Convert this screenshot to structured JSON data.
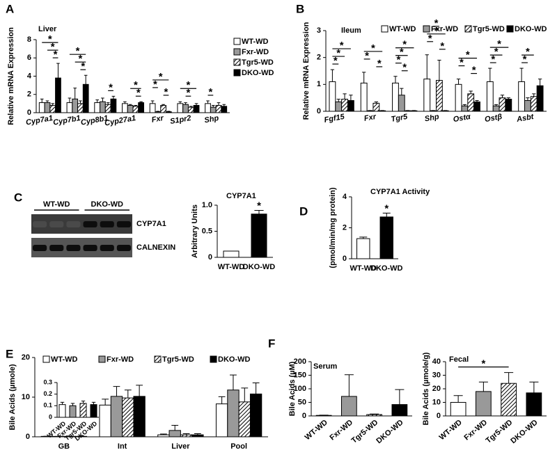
{
  "chart_data": [
    {
      "type": "bar",
      "panel": "A",
      "title": "Liver",
      "ylabel": "Relative mRNA Expression",
      "categories": [
        "Cyp7a1",
        "Cyp7b1",
        "Cyp8b1",
        "Cyp27a1",
        "Fxr",
        "S1pr2",
        "Shp"
      ],
      "series": [
        {
          "name": "WT-WD",
          "color": "#ffffff",
          "values": [
            1.1,
            1.1,
            1.1,
            1.0,
            1.0,
            1.0,
            1.0
          ],
          "errors": [
            0.4,
            0.5,
            0.3,
            0.2,
            0.3,
            0.2,
            0.3
          ]
        },
        {
          "name": "Fxr-WD",
          "color": "#999999",
          "values": [
            1.1,
            1.5,
            1.2,
            0.8,
            0.1,
            0.9,
            0.6
          ],
          "errors": [
            0.2,
            1.2,
            0.4,
            0.1,
            0.05,
            0.2,
            0.2
          ]
        },
        {
          "name": "Tgr5-WD",
          "color": "hatch",
          "values": [
            0.8,
            1.0,
            0.9,
            0.7,
            0.8,
            0.6,
            0.8
          ],
          "errors": [
            0.2,
            0.3,
            0.2,
            0.1,
            0.1,
            0.1,
            0.3
          ]
        },
        {
          "name": "DKO-WD",
          "color": "#000000",
          "values": [
            3.8,
            3.1,
            1.5,
            1.1,
            0.1,
            0.8,
            0.7
          ],
          "errors": [
            1.6,
            1.0,
            0.3,
            0.1,
            0.05,
            0.2,
            0.2
          ]
        }
      ],
      "ylim": [
        0,
        8
      ],
      "yticks": [
        0,
        2,
        4,
        6,
        8
      ],
      "significance": [
        {
          "category": "Cyp7a1",
          "pair": [
            "Tgr5-WD",
            "DKO-WD"
          ],
          "label": "*"
        },
        {
          "category": "Cyp7a1",
          "pair": [
            "Fxr-WD",
            "DKO-WD"
          ],
          "label": "*"
        },
        {
          "category": "Cyp7a1",
          "pair": [
            "WT-WD",
            "DKO-WD"
          ],
          "label": "*"
        },
        {
          "category": "Cyp7b1",
          "pair": [
            "Tgr5-WD",
            "DKO-WD"
          ],
          "label": "*"
        },
        {
          "category": "Cyp7b1",
          "pair": [
            "Fxr-WD",
            "DKO-WD"
          ],
          "label": "*"
        },
        {
          "category": "Cyp7b1",
          "pair": [
            "WT-WD",
            "DKO-WD"
          ],
          "label": "*"
        },
        {
          "category": "Cyp8b1",
          "pair": [
            "Tgr5-WD",
            "DKO-WD"
          ],
          "label": "*"
        },
        {
          "category": "Cyp27a1",
          "pair": [
            "Tgr5-WD",
            "DKO-WD"
          ],
          "label": "*"
        },
        {
          "category": "Cyp27a1",
          "pair": [
            "Fxr-WD",
            "DKO-WD"
          ],
          "label": "*"
        },
        {
          "category": "Fxr",
          "pair": [
            "Tgr5-WD",
            "DKO-WD"
          ],
          "label": "*"
        },
        {
          "category": "Fxr",
          "pair": [
            "WT-WD",
            "Fxr-WD"
          ],
          "label": "*"
        },
        {
          "category": "Fxr",
          "pair": [
            "WT-WD",
            "DKO-WD"
          ],
          "label": "*"
        },
        {
          "category": "S1pr2",
          "pair": [
            "Fxr-WD",
            "Tgr5-WD"
          ],
          "label": "*"
        },
        {
          "category": "S1pr2",
          "pair": [
            "WT-WD",
            "DKO-WD"
          ],
          "label": "*"
        },
        {
          "category": "Shp",
          "pair": [
            "WT-WD",
            "Fxr-WD"
          ],
          "label": "*"
        }
      ]
    },
    {
      "type": "bar",
      "panel": "B",
      "title": "Ileum",
      "ylabel": "Relative mRNA Expression",
      "categories": [
        "Fgf15",
        "Fxr",
        "Tgr5",
        "Shp",
        "Ostα",
        "Ostβ",
        "Asbt"
      ],
      "series": [
        {
          "name": "WT-WD",
          "color": "#ffffff",
          "values": [
            1.1,
            1.05,
            1.05,
            1.2,
            1.0,
            1.1,
            1.1
          ],
          "errors": [
            0.45,
            0.4,
            0.25,
            0.9,
            0.2,
            0.5,
            0.5
          ]
        },
        {
          "name": "Fxr-WD",
          "color": "#999999",
          "values": [
            0.35,
            0.02,
            0.6,
            0.02,
            0.2,
            0.2,
            0.4
          ],
          "errors": [
            0.1,
            0.01,
            0.25,
            0.01,
            0.05,
            0.05,
            0.1
          ]
        },
        {
          "name": "Tgr5-WD",
          "color": "hatch",
          "values": [
            0.45,
            0.3,
            0.02,
            1.15,
            0.65,
            0.5,
            0.55
          ],
          "errors": [
            0.2,
            0.05,
            0.01,
            0.75,
            0.1,
            0.1,
            0.1
          ]
        },
        {
          "name": "DKO-WD",
          "color": "#000000",
          "values": [
            0.4,
            0.02,
            0.02,
            0.02,
            0.35,
            0.45,
            0.95
          ],
          "errors": [
            0.2,
            0.01,
            0.01,
            0.01,
            0.05,
            0.05,
            0.25
          ]
        }
      ],
      "ylim": [
        0,
        3
      ],
      "yticks": [
        0,
        1,
        2,
        3
      ],
      "significance": [
        {
          "category": "Fgf15",
          "pair": [
            "WT-WD",
            "Fxr-WD"
          ],
          "label": "*"
        },
        {
          "category": "Fgf15",
          "pair": [
            "WT-WD",
            "Tgr5-WD"
          ],
          "label": "*"
        },
        {
          "category": "Fgf15",
          "pair": [
            "WT-WD",
            "DKO-WD"
          ],
          "label": "*"
        },
        {
          "category": "Fxr",
          "pair": [
            "Tgr5-WD",
            "DKO-WD"
          ],
          "label": "*"
        },
        {
          "category": "Fxr",
          "pair": [
            "WT-WD",
            "Fxr-WD"
          ],
          "label": "*"
        },
        {
          "category": "Fxr",
          "pair": [
            "WT-WD",
            "DKO-WD"
          ],
          "label": "*"
        },
        {
          "category": "Tgr5",
          "pair": [
            "Fxr-WD",
            "Tgr5-WD"
          ],
          "label": "*"
        },
        {
          "category": "Tgr5",
          "pair": [
            "WT-WD",
            "Fxr-WD"
          ],
          "label": "*"
        },
        {
          "category": "Tgr5",
          "pair": [
            "WT-WD",
            "Tgr5-WD"
          ],
          "label": "*"
        },
        {
          "category": "Tgr5",
          "pair": [
            "WT-WD",
            "DKO-WD"
          ],
          "label": "*"
        },
        {
          "category": "Shp",
          "pair": [
            "Tgr5-WD",
            "DKO-WD"
          ],
          "label": "*"
        },
        {
          "category": "Shp",
          "pair": [
            "WT-WD",
            "Fxr-WD"
          ],
          "label": "*"
        },
        {
          "category": "Shp",
          "pair": [
            "WT-WD",
            "DKO-WD"
          ],
          "label": "*"
        },
        {
          "category": "Shp",
          "pair": [
            "Fxr-WD",
            "Tgr5-WD"
          ],
          "label": "*"
        },
        {
          "category": "Ostα",
          "pair": [
            "Tgr5-WD",
            "DKO-WD"
          ],
          "label": "*"
        },
        {
          "category": "Ostα",
          "pair": [
            "WT-WD",
            "Fxr-WD"
          ],
          "label": "*"
        },
        {
          "category": "Ostα",
          "pair": [
            "WT-WD",
            "DKO-WD"
          ],
          "label": "*"
        },
        {
          "category": "Ostβ",
          "pair": [
            "WT-WD",
            "Fxr-WD"
          ],
          "label": "*"
        },
        {
          "category": "Ostβ",
          "pair": [
            "WT-WD",
            "Tgr5-WD"
          ],
          "label": "*"
        },
        {
          "category": "Ostβ",
          "pair": [
            "WT-WD",
            "DKO-WD"
          ],
          "label": "*"
        },
        {
          "category": "Asbt",
          "pair": [
            "WT-WD",
            "Fxr-WD"
          ],
          "label": "*"
        },
        {
          "category": "Asbt",
          "pair": [
            "WT-WD",
            "Tgr5-WD"
          ],
          "label": "*"
        }
      ]
    },
    {
      "type": "blot",
      "panel": "C",
      "groups": [
        "WT-WD",
        "DKO-WD"
      ],
      "bands": [
        "CYP7A1",
        "CALNEXIN"
      ]
    },
    {
      "type": "bar",
      "title": "CYP7A1",
      "ylabel": "Arbitrary Units",
      "categories": [
        "WT-WD",
        "DKO-WD"
      ],
      "values": [
        0.12,
        0.83
      ],
      "errors": [
        0.0,
        0.07
      ],
      "colors": [
        "#ffffff",
        "#000000"
      ],
      "ylim": [
        0,
        1
      ],
      "yticks": [
        0,
        0.5,
        {
          "value": 1,
          "label": "1.0"
        }
      ],
      "significance": [
        {
          "category": "DKO-WD",
          "label": "*"
        }
      ]
    },
    {
      "type": "bar",
      "panel": "D",
      "title": "CYP7A1 Activity",
      "ylabel": "(pmol/min/mg protein)",
      "categories": [
        "WT-WD",
        "DKO-WD"
      ],
      "values": [
        1.3,
        2.7
      ],
      "errors": [
        0.1,
        0.25
      ],
      "colors": [
        "#ffffff",
        "#000000"
      ],
      "ylim": [
        0,
        4
      ],
      "yticks": [
        0,
        2,
        4
      ],
      "significance": [
        {
          "category": "DKO-WD",
          "label": "*"
        }
      ]
    },
    {
      "type": "bar",
      "panel": "E",
      "ylabel": "Bile Acids (µmole)",
      "categories": [
        "GB",
        "Int",
        "Liver",
        "Pool"
      ],
      "series": [
        {
          "name": "WT-WD",
          "color": "#ffffff",
          "values": [
            0.11,
            8.0,
            0.5,
            8.3
          ],
          "errors": [
            0.02,
            1.5,
            0.2,
            1.8
          ]
        },
        {
          "name": "Fxr-WD",
          "color": "#999999",
          "values": [
            0.1,
            10.2,
            1.6,
            11.8
          ],
          "errors": [
            0.02,
            2.5,
            1.3,
            3.8
          ]
        },
        {
          "name": "Tgr5-WD",
          "color": "hatch",
          "values": [
            0.12,
            9.8,
            0.5,
            8.8
          ],
          "errors": [
            0.02,
            2.0,
            0.3,
            3.5
          ]
        },
        {
          "name": "DKO-WD",
          "color": "#000000",
          "values": [
            0.11,
            10.2,
            0.5,
            10.8
          ],
          "errors": [
            0.02,
            2.8,
            0.3,
            2.8
          ]
        }
      ],
      "ylim": [
        0,
        20
      ],
      "yticks": [
        0,
        10,
        20
      ]
    },
    {
      "type": "bar",
      "categories": [
        "WT-WD",
        "Fxr-WD",
        "Tgr5-WD",
        "DKO-WD"
      ],
      "values": [
        0.11,
        0.1,
        0.12,
        0.11
      ],
      "errors": [
        0.02,
        0.02,
        0.02,
        0.02
      ],
      "colors": [
        "#ffffff",
        "#999999",
        "hatch",
        "#000000"
      ],
      "ylim": [
        0,
        0.3
      ],
      "yticks": [
        0,
        0.1,
        0.2,
        0.3
      ]
    },
    {
      "type": "bar",
      "panel": "F",
      "title": "Serum",
      "ylabel": "Bile Acids (µM)",
      "categories": [
        "WT-WD",
        "Fxr-WD",
        "Tgr5-WD",
        "DKO-WD"
      ],
      "values": [
        2,
        72,
        5,
        42
      ],
      "errors": [
        1,
        80,
        2,
        55
      ],
      "colors": [
        "#ffffff",
        "#999999",
        "hatch",
        "#000000"
      ],
      "ylim": [
        0,
        200
      ],
      "yticks": [
        0,
        50,
        100,
        150,
        200
      ]
    },
    {
      "type": "bar",
      "title": "Fecal",
      "ylabel": "Bile Acids (µmole/g)",
      "categories": [
        "WT-WD",
        "Fxr-WD",
        "Tgr5-WD",
        "DKO-WD"
      ],
      "values": [
        10,
        18,
        24,
        17
      ],
      "errors": [
        5,
        7,
        8,
        8
      ],
      "colors": [
        "#ffffff",
        "#999999",
        "hatch",
        "#000000"
      ],
      "ylim": [
        0,
        40
      ],
      "yticks": [
        0,
        10,
        20,
        30,
        40
      ],
      "significance": [
        {
          "pair": [
            "WT-WD",
            "Tgr5-WD"
          ],
          "label": "*"
        }
      ]
    }
  ]
}
